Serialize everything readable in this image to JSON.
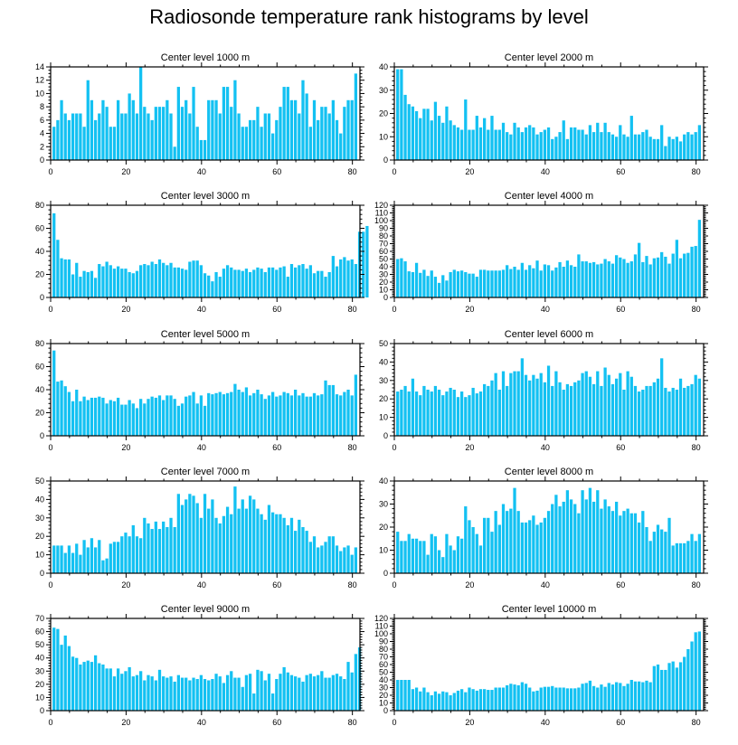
{
  "title": "Radiosonde temperature rank histograms by level",
  "bar_color": "#13c1f2",
  "chart_data": [
    {
      "type": "bar",
      "title": "Center level 1000 m",
      "xlim": [
        0,
        82
      ],
      "ylim": [
        0,
        14
      ],
      "xticks": [
        0,
        20,
        40,
        60,
        80
      ],
      "yticks": [
        0,
        2,
        4,
        6,
        8,
        10,
        12,
        14
      ],
      "values": [
        5,
        6,
        9,
        7,
        6,
        7,
        7,
        7,
        5,
        12,
        9,
        6,
        7,
        9,
        8,
        5,
        5,
        9,
        7,
        7,
        10,
        9,
        7,
        14,
        8,
        7,
        6,
        8,
        8,
        8,
        9,
        7,
        2,
        11,
        8,
        9,
        7,
        11,
        5,
        3,
        3,
        9,
        9,
        9,
        7,
        11,
        11,
        8,
        12,
        7,
        5,
        5,
        6,
        6,
        8,
        5,
        7,
        7,
        4,
        6,
        8,
        11,
        11,
        9,
        9,
        7,
        12,
        10,
        5,
        9,
        6,
        8,
        8,
        7,
        9,
        6,
        4,
        8,
        9,
        9,
        13
      ]
    },
    {
      "type": "bar",
      "title": "Center level 2000 m",
      "xlim": [
        0,
        82
      ],
      "ylim": [
        0,
        40
      ],
      "xticks": [
        0,
        20,
        40,
        60,
        80
      ],
      "yticks": [
        0,
        10,
        20,
        30,
        40
      ],
      "values": [
        39,
        39,
        28,
        24,
        23,
        21,
        18,
        22,
        22,
        17,
        25,
        19,
        16,
        23,
        17,
        15,
        14,
        13,
        26,
        13,
        13,
        19,
        14,
        18,
        13,
        19,
        13,
        13,
        16,
        12,
        11,
        16,
        14,
        12,
        14,
        15,
        14,
        11,
        12,
        13,
        14,
        9,
        10,
        12,
        17,
        9,
        14,
        14,
        13,
        13,
        11,
        15,
        12,
        16,
        12,
        16,
        12,
        11,
        10,
        15,
        11,
        10,
        19,
        11,
        11,
        12,
        13,
        10,
        9,
        9,
        15,
        6,
        10,
        9,
        10,
        8,
        11,
        12,
        11,
        12,
        15
      ]
    },
    {
      "type": "bar",
      "title": "Center level 3000 m",
      "xlim": [
        0,
        82
      ],
      "ylim": [
        0,
        80
      ],
      "xticks": [
        0,
        20,
        40,
        60,
        80
      ],
      "yticks": [
        0,
        20,
        40,
        60,
        80
      ],
      "values": [
        73,
        50,
        34,
        33,
        33,
        20,
        30,
        18,
        23,
        22,
        23,
        17,
        29,
        27,
        31,
        28,
        25,
        27,
        25,
        25,
        22,
        21,
        23,
        28,
        29,
        28,
        31,
        29,
        33,
        30,
        28,
        30,
        26,
        26,
        25,
        24,
        31,
        32,
        32,
        28,
        21,
        19,
        14,
        22,
        18,
        25,
        28,
        26,
        24,
        24,
        23,
        25,
        22,
        24,
        26,
        25,
        22,
        26,
        26,
        24,
        26,
        27,
        18,
        29,
        26,
        28,
        29,
        25,
        28,
        21,
        23,
        23,
        18,
        22,
        36,
        27,
        33,
        35,
        32,
        33,
        29,
        57,
        57,
        62
      ]
    },
    {
      "type": "bar",
      "title": "Center level 4000 m",
      "xlim": [
        0,
        82
      ],
      "ylim": [
        0,
        120
      ],
      "xticks": [
        0,
        20,
        40,
        60,
        80
      ],
      "yticks": [
        0,
        10,
        20,
        30,
        40,
        50,
        60,
        70,
        80,
        90,
        100,
        110,
        120
      ],
      "values": [
        50,
        51,
        47,
        34,
        33,
        45,
        32,
        36,
        28,
        35,
        27,
        19,
        29,
        22,
        33,
        36,
        34,
        35,
        33,
        31,
        31,
        27,
        36,
        36,
        35,
        35,
        35,
        35,
        36,
        42,
        37,
        40,
        36,
        45,
        36,
        42,
        38,
        48,
        35,
        43,
        42,
        35,
        39,
        46,
        40,
        48,
        42,
        40,
        56,
        47,
        47,
        45,
        46,
        43,
        44,
        50,
        47,
        44,
        55,
        52,
        50,
        45,
        47,
        56,
        71,
        46,
        54,
        43,
        51,
        52,
        59,
        53,
        44,
        57,
        75,
        51,
        57,
        58,
        66,
        67,
        101
      ]
    },
    {
      "type": "bar",
      "title": "Center level 5000 m",
      "xlim": [
        0,
        82
      ],
      "ylim": [
        0,
        80
      ],
      "xticks": [
        0,
        20,
        40,
        60,
        80
      ],
      "yticks": [
        0,
        20,
        40,
        60,
        80
      ],
      "values": [
        74,
        47,
        48,
        43,
        38,
        30,
        40,
        30,
        34,
        31,
        33,
        33,
        34,
        33,
        28,
        31,
        30,
        33,
        27,
        27,
        31,
        28,
        24,
        32,
        28,
        32,
        34,
        33,
        35,
        31,
        35,
        35,
        32,
        26,
        28,
        34,
        35,
        38,
        28,
        35,
        26,
        37,
        36,
        37,
        38,
        36,
        37,
        38,
        45,
        40,
        38,
        42,
        35,
        37,
        40,
        36,
        32,
        35,
        38,
        34,
        35,
        38,
        37,
        35,
        40,
        35,
        37,
        34,
        34,
        37,
        35,
        36,
        48,
        44,
        44,
        36,
        35,
        38,
        40,
        35,
        53
      ]
    },
    {
      "type": "bar",
      "title": "Center level 6000 m",
      "xlim": [
        0,
        82
      ],
      "ylim": [
        0,
        50
      ],
      "xticks": [
        0,
        20,
        40,
        60,
        80
      ],
      "yticks": [
        0,
        10,
        20,
        30,
        40,
        50
      ],
      "values": [
        24,
        25,
        27,
        24,
        31,
        24,
        22,
        27,
        25,
        24,
        27,
        25,
        22,
        24,
        26,
        25,
        21,
        24,
        21,
        22,
        26,
        23,
        24,
        28,
        27,
        30,
        34,
        25,
        35,
        27,
        34,
        35,
        35,
        42,
        33,
        30,
        33,
        31,
        34,
        29,
        38,
        27,
        35,
        29,
        25,
        28,
        27,
        29,
        30,
        34,
        35,
        32,
        28,
        35,
        27,
        37,
        33,
        28,
        31,
        34,
        25,
        35,
        32,
        27,
        24,
        25,
        27,
        27,
        29,
        31,
        42,
        26,
        24,
        26,
        25,
        31,
        26,
        27,
        28,
        33,
        31
      ]
    },
    {
      "type": "bar",
      "title": "Center level 7000 m",
      "xlim": [
        0,
        82
      ],
      "ylim": [
        0,
        50
      ],
      "xticks": [
        0,
        20,
        40,
        60,
        80
      ],
      "yticks": [
        0,
        10,
        20,
        30,
        40,
        50
      ],
      "values": [
        15,
        15,
        15,
        11,
        15,
        11,
        16,
        10,
        18,
        14,
        19,
        14,
        18,
        7,
        8,
        16,
        17,
        17,
        20,
        22,
        20,
        26,
        20,
        19,
        30,
        27,
        24,
        28,
        24,
        28,
        25,
        30,
        25,
        43,
        37,
        40,
        43,
        42,
        38,
        30,
        43,
        35,
        40,
        30,
        27,
        31,
        36,
        32,
        47,
        35,
        40,
        35,
        42,
        40,
        35,
        32,
        29,
        37,
        33,
        32,
        32,
        30,
        26,
        30,
        23,
        29,
        25,
        23,
        17,
        20,
        14,
        15,
        17,
        20,
        20,
        15,
        12,
        14,
        15,
        10,
        14
      ]
    },
    {
      "type": "bar",
      "title": "Center level 8000 m",
      "xlim": [
        0,
        82
      ],
      "ylim": [
        0,
        40
      ],
      "xticks": [
        0,
        20,
        40,
        60,
        80
      ],
      "yticks": [
        0,
        10,
        20,
        30,
        40
      ],
      "values": [
        18,
        14,
        14,
        17,
        15,
        15,
        14,
        14,
        8,
        17,
        16,
        10,
        7,
        17,
        12,
        10,
        16,
        15,
        29,
        23,
        20,
        17,
        12,
        24,
        24,
        18,
        27,
        21,
        30,
        27,
        28,
        37,
        27,
        22,
        22,
        23,
        25,
        21,
        22,
        24,
        27,
        30,
        34,
        29,
        31,
        36,
        32,
        30,
        26,
        36,
        32,
        37,
        31,
        36,
        28,
        32,
        29,
        27,
        31,
        25,
        27,
        28,
        26,
        26,
        22,
        27,
        20,
        14,
        18,
        21,
        19,
        18,
        24,
        12,
        13,
        13,
        13,
        14,
        17,
        14,
        17
      ]
    },
    {
      "type": "bar",
      "title": "Center level 9000 m",
      "xlim": [
        0,
        82
      ],
      "ylim": [
        0,
        70
      ],
      "xticks": [
        0,
        20,
        40,
        60,
        80
      ],
      "yticks": [
        0,
        10,
        20,
        30,
        40,
        50,
        60,
        70
      ],
      "values": [
        63,
        62,
        50,
        57,
        49,
        41,
        40,
        35,
        37,
        38,
        37,
        42,
        36,
        35,
        32,
        32,
        26,
        32,
        28,
        30,
        33,
        26,
        27,
        30,
        23,
        27,
        26,
        23,
        31,
        26,
        25,
        26,
        22,
        27,
        25,
        25,
        23,
        25,
        24,
        27,
        24,
        23,
        24,
        28,
        26,
        21,
        27,
        30,
        25,
        25,
        18,
        27,
        28,
        13,
        31,
        30,
        23,
        28,
        13,
        24,
        28,
        33,
        29,
        27,
        26,
        25,
        22,
        27,
        28,
        26,
        27,
        30,
        25,
        25,
        27,
        28,
        26,
        24,
        37,
        29,
        43,
        48
      ]
    },
    {
      "type": "bar",
      "title": "Center level 10000 m",
      "xlim": [
        0,
        82
      ],
      "ylim": [
        0,
        120
      ],
      "xticks": [
        0,
        20,
        40,
        60,
        80
      ],
      "yticks": [
        0,
        10,
        20,
        30,
        40,
        50,
        60,
        70,
        80,
        90,
        100,
        110,
        120
      ],
      "values": [
        40,
        40,
        40,
        40,
        28,
        30,
        25,
        30,
        24,
        20,
        25,
        22,
        25,
        24,
        20,
        23,
        26,
        28,
        24,
        30,
        28,
        26,
        28,
        28,
        27,
        27,
        30,
        30,
        30,
        33,
        35,
        34,
        33,
        37,
        35,
        30,
        25,
        26,
        30,
        31,
        31,
        32,
        30,
        30,
        30,
        29,
        29,
        29,
        30,
        35,
        36,
        39,
        32,
        30,
        34,
        31,
        36,
        34,
        37,
        36,
        32,
        35,
        40,
        38,
        38,
        37,
        39,
        37,
        58,
        60,
        53,
        53,
        62,
        64,
        56,
        63,
        70,
        80,
        90,
        102,
        103
      ]
    }
  ]
}
